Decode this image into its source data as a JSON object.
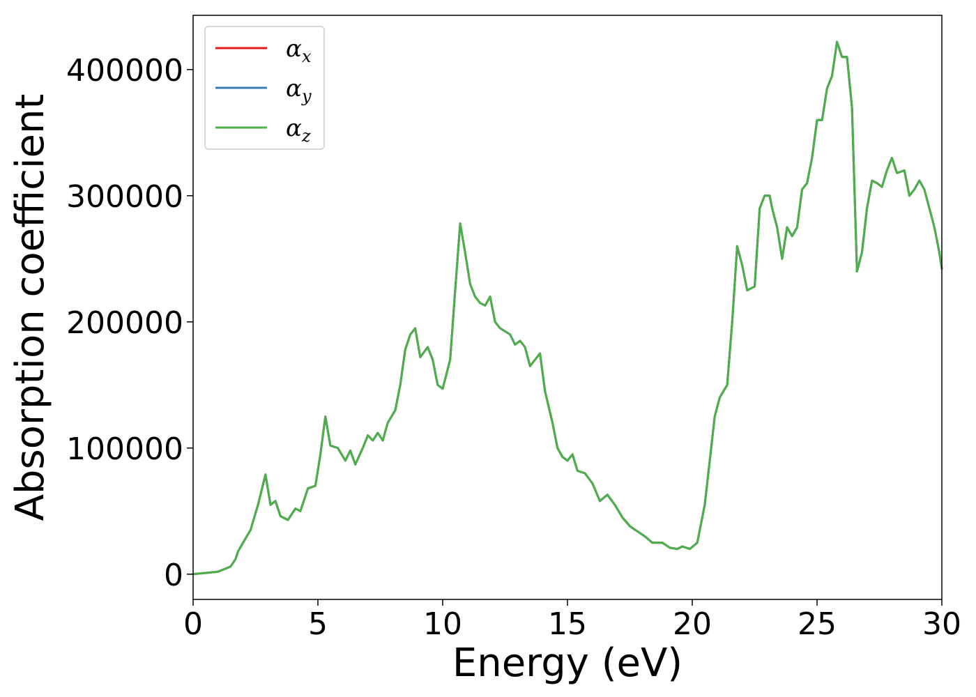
{
  "chart_data": {
    "type": "line",
    "title": "",
    "xlabel": "Energy (eV)",
    "ylabel": "Absorption coefficient",
    "xlim": [
      0,
      30
    ],
    "ylim": [
      -20000,
      443000
    ],
    "xticks": [
      0,
      5,
      10,
      15,
      20,
      25,
      30
    ],
    "xtick_labels": [
      "0",
      "5",
      "10",
      "15",
      "20",
      "25",
      "30"
    ],
    "yticks": [
      0,
      100000,
      200000,
      300000,
      400000
    ],
    "ytick_labels": [
      "0",
      "100000",
      "200000",
      "300000",
      "400000"
    ],
    "grid": false,
    "legend_position": "top-left",
    "series": [
      {
        "name": "αx",
        "symbol": "α",
        "sub": "x",
        "color": "#e41a1c",
        "x": [
          0,
          1,
          1.5,
          1.7,
          1.8,
          2.0,
          2.3,
          2.6,
          2.9,
          3.1,
          3.3,
          3.5,
          3.8,
          4.1,
          4.3,
          4.6,
          4.9,
          5.1,
          5.3,
          5.5,
          5.8,
          6.1,
          6.3,
          6.5,
          6.8,
          7.0,
          7.2,
          7.4,
          7.6,
          7.8,
          8.1,
          8.3,
          8.5,
          8.7,
          8.9,
          9.1,
          9.4,
          9.6,
          9.8,
          10.0,
          10.3,
          10.5,
          10.7,
          10.9,
          11.1,
          11.3,
          11.5,
          11.7,
          11.9,
          12.1,
          12.3,
          12.7,
          12.9,
          13.1,
          13.3,
          13.5,
          13.7,
          13.9,
          14.1,
          14.4,
          14.6,
          14.8,
          15.0,
          15.2,
          15.4,
          15.7,
          16.0,
          16.3,
          16.6,
          16.9,
          17.2,
          17.5,
          17.8,
          18.1,
          18.4,
          18.8,
          19.1,
          19.4,
          19.6,
          19.9,
          20.2,
          20.5,
          20.7,
          20.9,
          21.1,
          21.4,
          21.6,
          21.8,
          22.0,
          22.2,
          22.5,
          22.7,
          22.9,
          23.1,
          23.2,
          23.4,
          23.6,
          23.8,
          24.0,
          24.2,
          24.4,
          24.6,
          24.8,
          25.0,
          25.2,
          25.4,
          25.6,
          25.8,
          26.0,
          26.2,
          26.4,
          26.6,
          26.8,
          27.0,
          27.2,
          27.4,
          27.6,
          27.8,
          28.0,
          28.2,
          28.5,
          28.7,
          28.9,
          29.1,
          29.3,
          29.5,
          29.7,
          29.9,
          30.0
        ],
        "y": [
          0,
          2000,
          6000,
          12000,
          18000,
          25000,
          35000,
          55000,
          79000,
          55000,
          58000,
          46000,
          43000,
          52000,
          50000,
          68000,
          70000,
          95000,
          125000,
          102000,
          100000,
          90000,
          98000,
          87000,
          100000,
          110000,
          106000,
          112000,
          106000,
          120000,
          130000,
          150000,
          178000,
          190000,
          195000,
          172000,
          180000,
          170000,
          150000,
          147000,
          170000,
          225000,
          278000,
          255000,
          230000,
          220000,
          215000,
          213000,
          220000,
          200000,
          195000,
          190000,
          182000,
          185000,
          180000,
          165000,
          170000,
          175000,
          145000,
          120000,
          100000,
          93000,
          90000,
          95000,
          82000,
          80000,
          72000,
          58000,
          63000,
          55000,
          45000,
          38000,
          34000,
          30000,
          25000,
          25000,
          21000,
          20000,
          22000,
          20000,
          25000,
          55000,
          90000,
          125000,
          140000,
          150000,
          200000,
          260000,
          245000,
          225000,
          228000,
          290000,
          300000,
          300000,
          290000,
          275000,
          250000,
          275000,
          268000,
          275000,
          305000,
          310000,
          330000,
          360000,
          360000,
          385000,
          395000,
          422000,
          410000,
          410000,
          370000,
          240000,
          255000,
          290000,
          312000,
          310000,
          307000,
          320000,
          330000,
          318000,
          320000,
          300000,
          305000,
          312000,
          305000,
          290000,
          275000,
          255000,
          242000
        ]
      },
      {
        "name": "αy",
        "symbol": "α",
        "sub": "y",
        "color": "#377eb8",
        "x": [
          0,
          1,
          1.5,
          1.7,
          1.8,
          2.0,
          2.3,
          2.6,
          2.9,
          3.1,
          3.3,
          3.5,
          3.8,
          4.1,
          4.3,
          4.6,
          4.9,
          5.1,
          5.3,
          5.5,
          5.8,
          6.1,
          6.3,
          6.5,
          6.8,
          7.0,
          7.2,
          7.4,
          7.6,
          7.8,
          8.1,
          8.3,
          8.5,
          8.7,
          8.9,
          9.1,
          9.4,
          9.6,
          9.8,
          10.0,
          10.3,
          10.5,
          10.7,
          10.9,
          11.1,
          11.3,
          11.5,
          11.7,
          11.9,
          12.1,
          12.3,
          12.7,
          12.9,
          13.1,
          13.3,
          13.5,
          13.7,
          13.9,
          14.1,
          14.4,
          14.6,
          14.8,
          15.0,
          15.2,
          15.4,
          15.7,
          16.0,
          16.3,
          16.6,
          16.9,
          17.2,
          17.5,
          17.8,
          18.1,
          18.4,
          18.8,
          19.1,
          19.4,
          19.6,
          19.9,
          20.2,
          20.5,
          20.7,
          20.9,
          21.1,
          21.4,
          21.6,
          21.8,
          22.0,
          22.2,
          22.5,
          22.7,
          22.9,
          23.1,
          23.2,
          23.4,
          23.6,
          23.8,
          24.0,
          24.2,
          24.4,
          24.6,
          24.8,
          25.0,
          25.2,
          25.4,
          25.6,
          25.8,
          26.0,
          26.2,
          26.4,
          26.6,
          26.8,
          27.0,
          27.2,
          27.4,
          27.6,
          27.8,
          28.0,
          28.2,
          28.5,
          28.7,
          28.9,
          29.1,
          29.3,
          29.5,
          29.7,
          29.9,
          30.0
        ],
        "y": [
          0,
          2000,
          6000,
          12000,
          18000,
          25000,
          35000,
          55000,
          79000,
          55000,
          58000,
          46000,
          43000,
          52000,
          50000,
          68000,
          70000,
          95000,
          125000,
          102000,
          100000,
          90000,
          98000,
          87000,
          100000,
          110000,
          106000,
          112000,
          106000,
          120000,
          130000,
          150000,
          178000,
          190000,
          195000,
          172000,
          180000,
          170000,
          150000,
          147000,
          170000,
          225000,
          278000,
          255000,
          230000,
          220000,
          215000,
          213000,
          220000,
          200000,
          195000,
          190000,
          182000,
          185000,
          180000,
          165000,
          170000,
          175000,
          145000,
          120000,
          100000,
          93000,
          90000,
          95000,
          82000,
          80000,
          72000,
          58000,
          63000,
          55000,
          45000,
          38000,
          34000,
          30000,
          25000,
          25000,
          21000,
          20000,
          22000,
          20000,
          25000,
          55000,
          90000,
          125000,
          140000,
          150000,
          200000,
          260000,
          245000,
          225000,
          228000,
          290000,
          300000,
          300000,
          290000,
          275000,
          250000,
          275000,
          268000,
          275000,
          305000,
          310000,
          330000,
          360000,
          360000,
          385000,
          395000,
          422000,
          410000,
          410000,
          370000,
          240000,
          255000,
          290000,
          312000,
          310000,
          307000,
          320000,
          330000,
          318000,
          320000,
          300000,
          305000,
          312000,
          305000,
          290000,
          275000,
          255000,
          242000
        ]
      },
      {
        "name": "αz",
        "symbol": "α",
        "sub": "z",
        "color": "#4daf4a",
        "x": [
          0,
          1,
          1.5,
          1.7,
          1.8,
          2.0,
          2.3,
          2.6,
          2.9,
          3.1,
          3.3,
          3.5,
          3.8,
          4.1,
          4.3,
          4.6,
          4.9,
          5.1,
          5.3,
          5.5,
          5.8,
          6.1,
          6.3,
          6.5,
          6.8,
          7.0,
          7.2,
          7.4,
          7.6,
          7.8,
          8.1,
          8.3,
          8.5,
          8.7,
          8.9,
          9.1,
          9.4,
          9.6,
          9.8,
          10.0,
          10.3,
          10.5,
          10.7,
          10.9,
          11.1,
          11.3,
          11.5,
          11.7,
          11.9,
          12.1,
          12.3,
          12.7,
          12.9,
          13.1,
          13.3,
          13.5,
          13.7,
          13.9,
          14.1,
          14.4,
          14.6,
          14.8,
          15.0,
          15.2,
          15.4,
          15.7,
          16.0,
          16.3,
          16.6,
          16.9,
          17.2,
          17.5,
          17.8,
          18.1,
          18.4,
          18.8,
          19.1,
          19.4,
          19.6,
          19.9,
          20.2,
          20.5,
          20.7,
          20.9,
          21.1,
          21.4,
          21.6,
          21.8,
          22.0,
          22.2,
          22.5,
          22.7,
          22.9,
          23.1,
          23.2,
          23.4,
          23.6,
          23.8,
          24.0,
          24.2,
          24.4,
          24.6,
          24.8,
          25.0,
          25.2,
          25.4,
          25.6,
          25.8,
          26.0,
          26.2,
          26.4,
          26.6,
          26.8,
          27.0,
          27.2,
          27.4,
          27.6,
          27.8,
          28.0,
          28.2,
          28.5,
          28.7,
          28.9,
          29.1,
          29.3,
          29.5,
          29.7,
          29.9,
          30.0
        ],
        "y": [
          0,
          2000,
          6000,
          12000,
          18000,
          25000,
          35000,
          55000,
          79000,
          55000,
          58000,
          46000,
          43000,
          52000,
          50000,
          68000,
          70000,
          95000,
          125000,
          102000,
          100000,
          90000,
          98000,
          87000,
          100000,
          110000,
          106000,
          112000,
          106000,
          120000,
          130000,
          150000,
          178000,
          190000,
          195000,
          172000,
          180000,
          170000,
          150000,
          147000,
          170000,
          225000,
          278000,
          255000,
          230000,
          220000,
          215000,
          213000,
          220000,
          200000,
          195000,
          190000,
          182000,
          185000,
          180000,
          165000,
          170000,
          175000,
          145000,
          120000,
          100000,
          93000,
          90000,
          95000,
          82000,
          80000,
          72000,
          58000,
          63000,
          55000,
          45000,
          38000,
          34000,
          30000,
          25000,
          25000,
          21000,
          20000,
          22000,
          20000,
          25000,
          55000,
          90000,
          125000,
          140000,
          150000,
          200000,
          260000,
          245000,
          225000,
          228000,
          290000,
          300000,
          300000,
          290000,
          275000,
          250000,
          275000,
          268000,
          275000,
          305000,
          310000,
          330000,
          360000,
          360000,
          385000,
          395000,
          422000,
          410000,
          410000,
          370000,
          240000,
          255000,
          290000,
          312000,
          310000,
          307000,
          320000,
          330000,
          318000,
          320000,
          300000,
          305000,
          312000,
          305000,
          290000,
          275000,
          255000,
          242000
        ]
      }
    ]
  }
}
